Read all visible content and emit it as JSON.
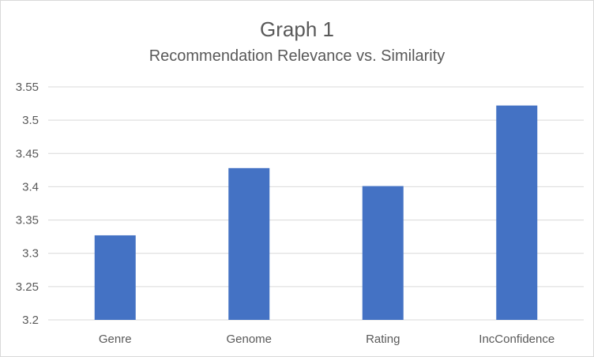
{
  "chart_data": {
    "type": "bar",
    "title": "Graph 1",
    "subtitle": "Recommendation Relevance vs. Similarity",
    "xlabel": "",
    "ylabel": "",
    "categories": [
      "Genre",
      "Genome",
      "Rating",
      "IncConfidence"
    ],
    "values": [
      3.327,
      3.428,
      3.401,
      3.522
    ],
    "ylim": [
      3.2,
      3.55
    ],
    "yticks": [
      3.2,
      3.25,
      3.3,
      3.35,
      3.4,
      3.45,
      3.5,
      3.55
    ],
    "ytick_labels": [
      "3.2",
      "3.25",
      "3.3",
      "3.35",
      "3.4",
      "3.45",
      "3.5",
      "3.55"
    ],
    "grid": true,
    "legend": "none",
    "colors": {
      "bar": "#4472c4",
      "grid": "#d9d9d9",
      "text": "#595959"
    }
  }
}
